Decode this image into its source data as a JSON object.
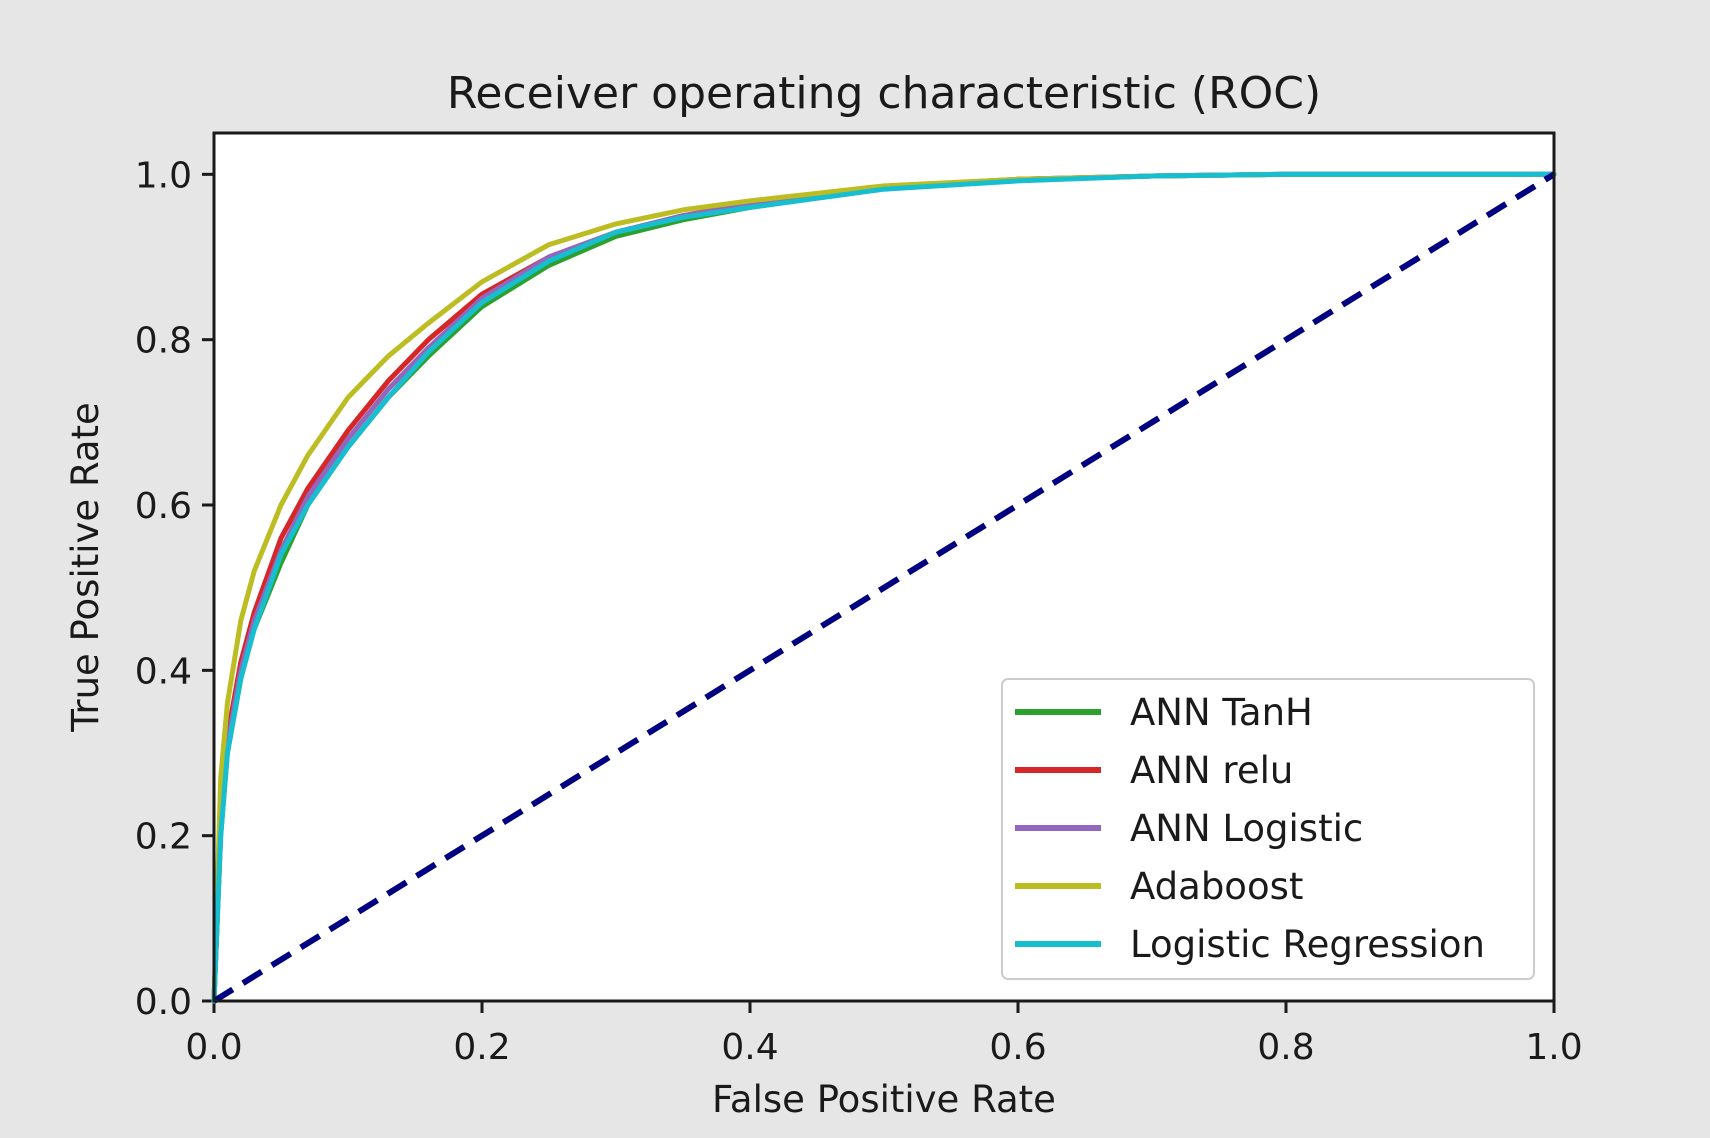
{
  "chart_data": {
    "type": "line",
    "title": "Receiver operating characteristic (ROC)",
    "xlabel": "False Positive Rate",
    "ylabel": "True Positive Rate",
    "xlim": [
      0.0,
      1.0
    ],
    "ylim": [
      0.0,
      1.05
    ],
    "xticks": [
      "0.0",
      "0.2",
      "0.4",
      "0.6",
      "0.8",
      "1.0"
    ],
    "yticks": [
      "0.0",
      "0.2",
      "0.4",
      "0.6",
      "0.8",
      "1.0"
    ],
    "grid": false,
    "legend_position": "lower-right",
    "series": [
      {
        "name": "ANN TanH",
        "color": "#2ca02c",
        "x": [
          0,
          0.005,
          0.01,
          0.02,
          0.03,
          0.05,
          0.07,
          0.1,
          0.13,
          0.16,
          0.2,
          0.25,
          0.3,
          0.35,
          0.4,
          0.5,
          0.6,
          0.7,
          0.8,
          0.9,
          1.0
        ],
        "y": [
          0,
          0.2,
          0.3,
          0.39,
          0.45,
          0.53,
          0.6,
          0.67,
          0.73,
          0.78,
          0.84,
          0.89,
          0.925,
          0.945,
          0.96,
          0.983,
          0.993,
          0.998,
          1.0,
          1.0,
          1.0
        ]
      },
      {
        "name": "ANN relu",
        "color": "#d62728",
        "x": [
          0,
          0.005,
          0.01,
          0.02,
          0.03,
          0.05,
          0.07,
          0.1,
          0.13,
          0.16,
          0.2,
          0.25,
          0.3,
          0.35,
          0.4,
          0.5,
          0.6,
          0.7,
          0.8,
          0.9,
          1.0
        ],
        "y": [
          0,
          0.22,
          0.32,
          0.41,
          0.47,
          0.56,
          0.62,
          0.69,
          0.75,
          0.8,
          0.855,
          0.9,
          0.93,
          0.95,
          0.965,
          0.985,
          0.994,
          0.998,
          1.0,
          1.0,
          1.0
        ]
      },
      {
        "name": "ANN Logistic",
        "color": "#9467bd",
        "x": [
          0,
          0.005,
          0.01,
          0.02,
          0.03,
          0.05,
          0.07,
          0.1,
          0.13,
          0.16,
          0.2,
          0.25,
          0.3,
          0.35,
          0.4,
          0.5,
          0.6,
          0.7,
          0.8,
          0.9,
          1.0
        ],
        "y": [
          0,
          0.21,
          0.31,
          0.4,
          0.46,
          0.545,
          0.61,
          0.68,
          0.74,
          0.79,
          0.85,
          0.9,
          0.93,
          0.95,
          0.963,
          0.984,
          0.994,
          0.998,
          1.0,
          1.0,
          1.0
        ]
      },
      {
        "name": "Adaboost",
        "color": "#bcbd22",
        "x": [
          0,
          0.005,
          0.01,
          0.02,
          0.03,
          0.05,
          0.07,
          0.1,
          0.13,
          0.16,
          0.2,
          0.25,
          0.3,
          0.35,
          0.4,
          0.5,
          0.6,
          0.7,
          0.8,
          0.9,
          1.0
        ],
        "y": [
          0,
          0.27,
          0.36,
          0.46,
          0.52,
          0.6,
          0.66,
          0.73,
          0.78,
          0.82,
          0.87,
          0.915,
          0.94,
          0.957,
          0.968,
          0.986,
          0.994,
          0.998,
          1.0,
          1.0,
          1.0
        ]
      },
      {
        "name": "Logistic Regression",
        "color": "#17becf",
        "x": [
          0,
          0.005,
          0.01,
          0.02,
          0.03,
          0.05,
          0.07,
          0.1,
          0.13,
          0.16,
          0.2,
          0.25,
          0.3,
          0.35,
          0.4,
          0.5,
          0.6,
          0.7,
          0.8,
          0.9,
          1.0
        ],
        "y": [
          0,
          0.2,
          0.3,
          0.39,
          0.45,
          0.54,
          0.6,
          0.67,
          0.73,
          0.785,
          0.845,
          0.895,
          0.93,
          0.948,
          0.96,
          0.982,
          0.992,
          0.998,
          1.0,
          1.0,
          1.0
        ]
      }
    ],
    "reference_line": {
      "x": [
        0,
        1
      ],
      "y": [
        0,
        1
      ],
      "color": "#000080",
      "style": "dashed"
    }
  }
}
